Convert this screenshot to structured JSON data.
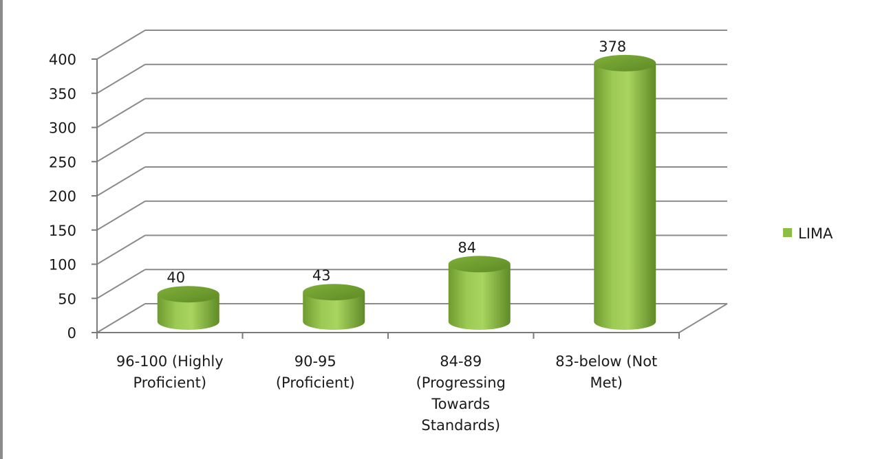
{
  "chart_data": {
    "type": "bar",
    "style": "3d-cylinder",
    "categories": [
      [
        "96-100 (Highly",
        "Proficient)"
      ],
      [
        "90-95",
        "(Proficient)"
      ],
      [
        "84-89",
        "(Progressing",
        "Towards",
        "Standards)"
      ],
      [
        "83-below (Not",
        "Met)"
      ]
    ],
    "series": [
      {
        "name": "LIMA",
        "values": [
          40,
          43,
          84,
          378
        ],
        "color": "#8cbd44"
      }
    ],
    "data_labels": [
      "40",
      "43",
      "84",
      "378"
    ],
    "yticks": [
      0,
      50,
      100,
      150,
      200,
      250,
      300,
      350,
      400
    ],
    "ylim": [
      0,
      400
    ],
    "grid": true,
    "legend": "right"
  }
}
